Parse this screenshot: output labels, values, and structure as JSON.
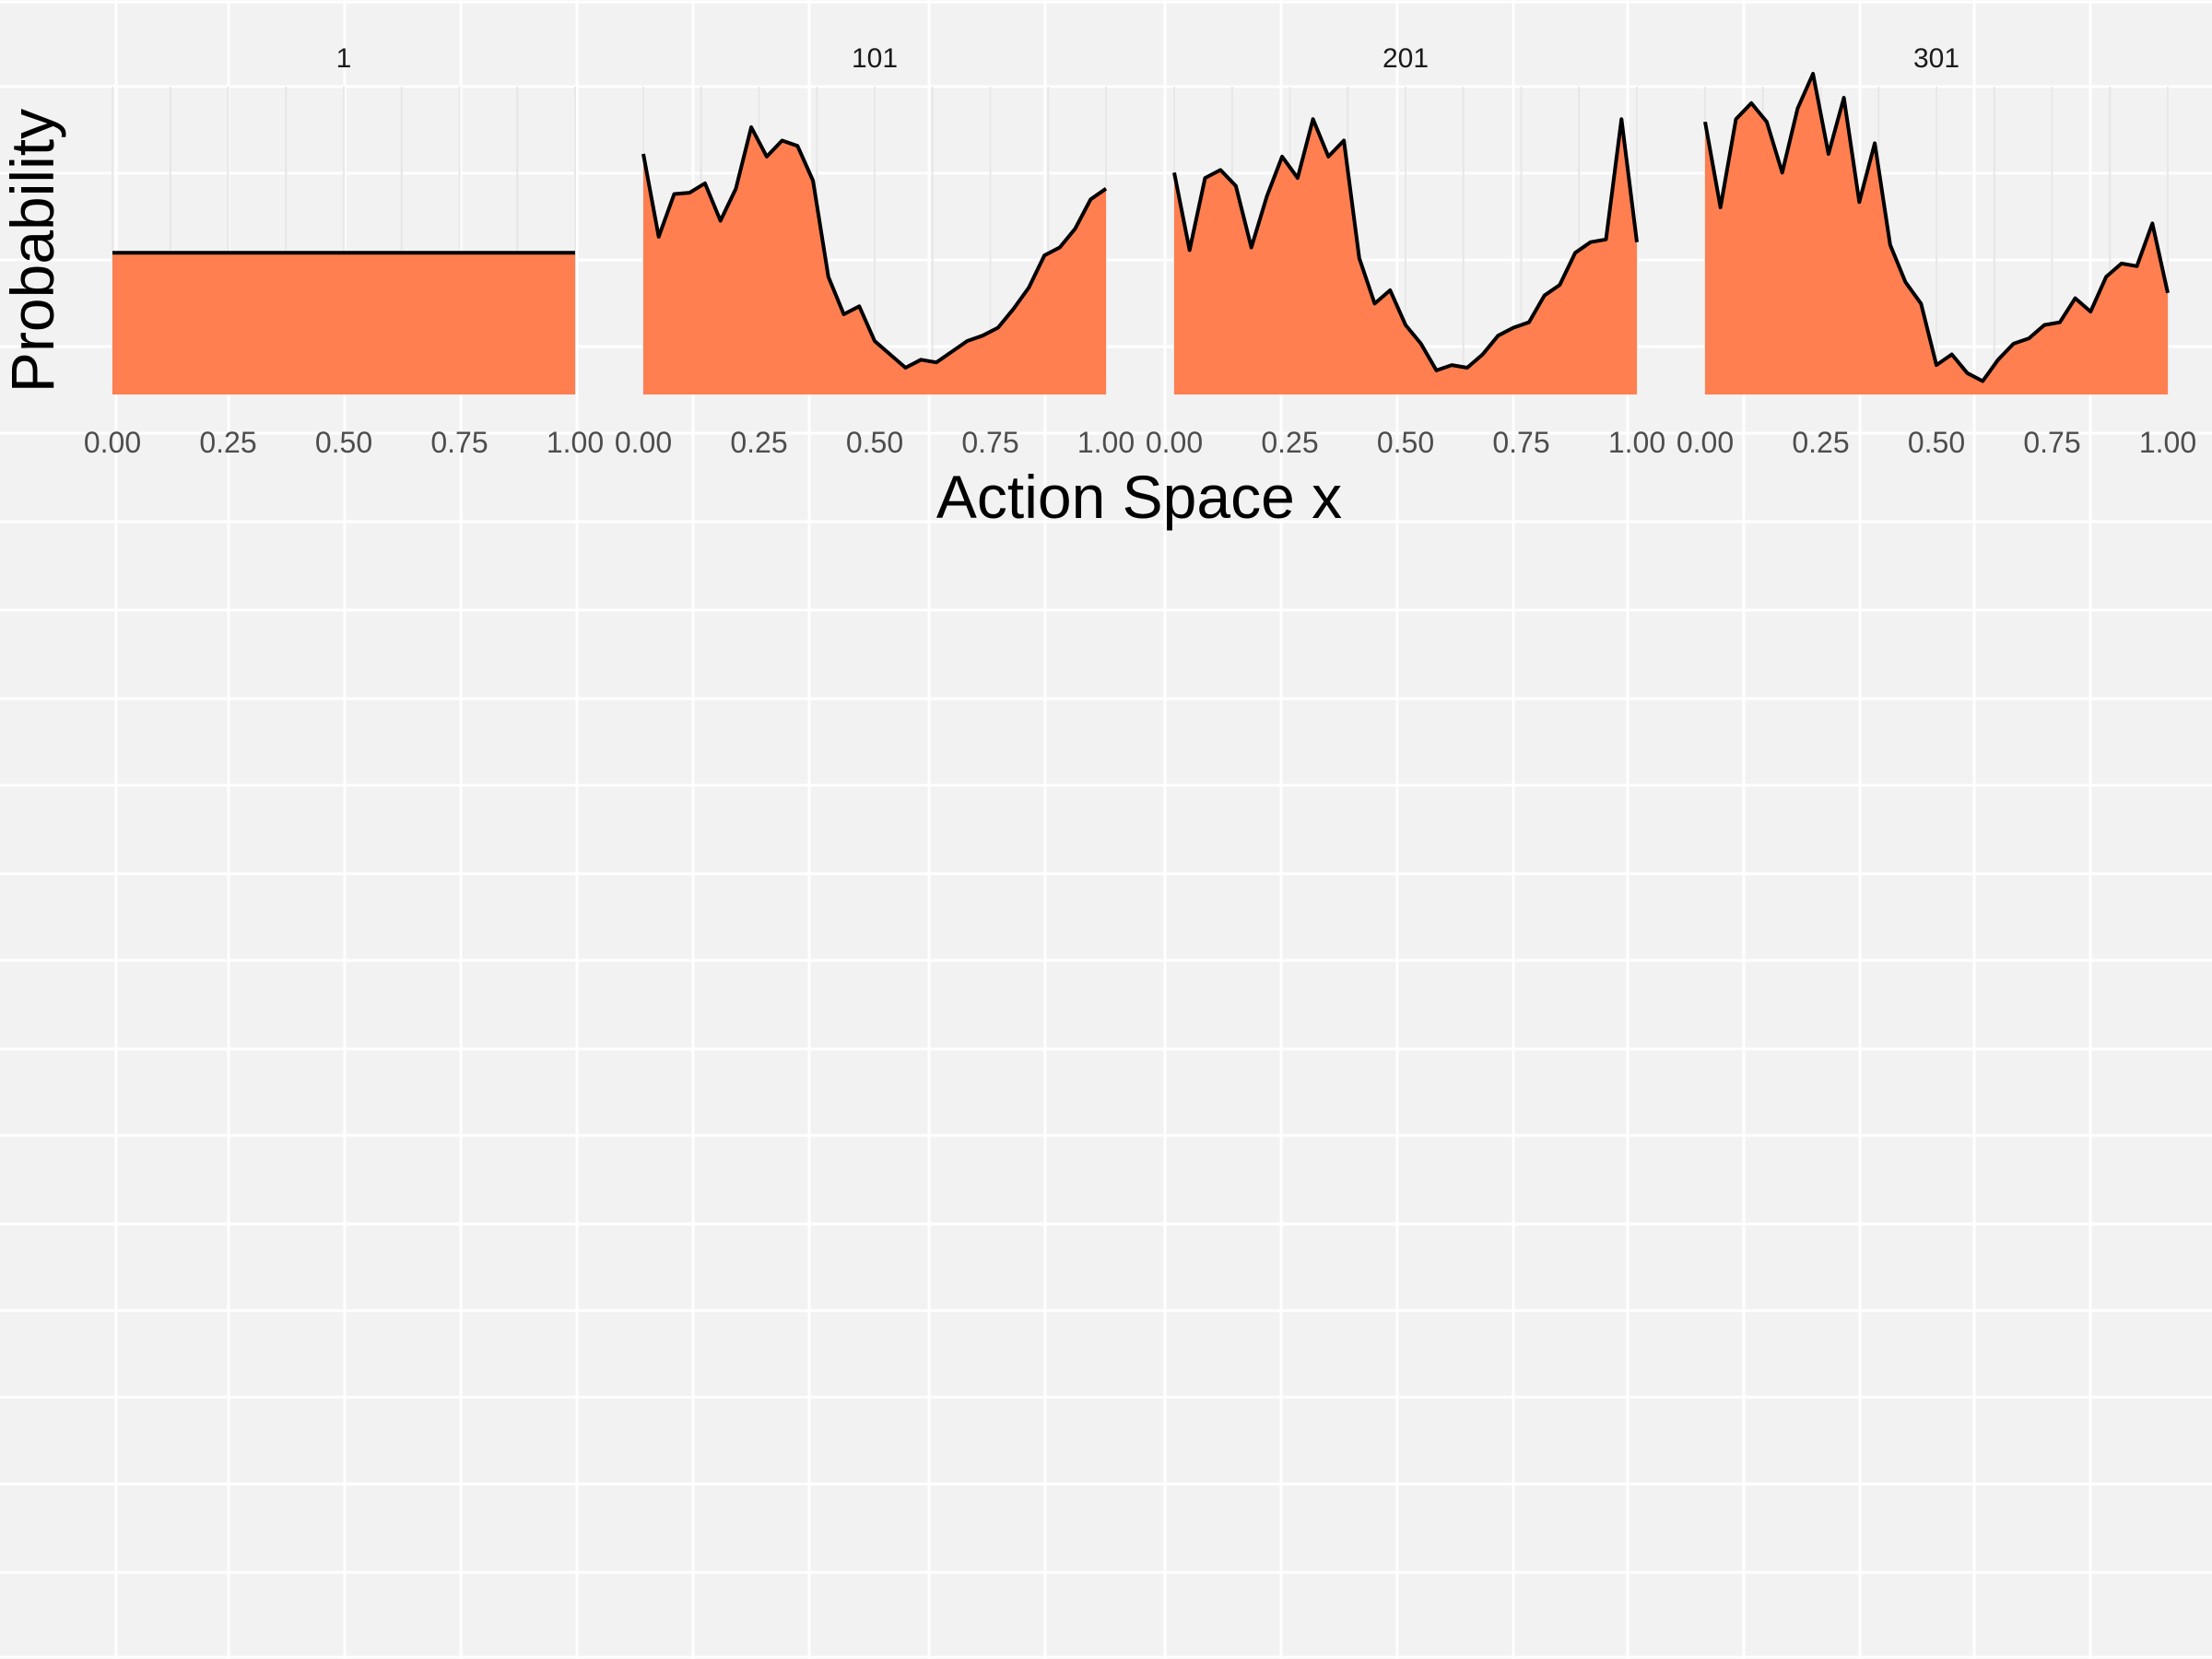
{
  "chart_data": {
    "type": "area",
    "xlabel": "Action Space x",
    "ylabel": "Probability",
    "x_ticks": [
      "0.00",
      "0.25",
      "0.50",
      "0.75",
      "1.00"
    ],
    "x_range": [
      0,
      1
    ],
    "grid": true,
    "colors": {
      "fill": "#ff7f50",
      "line": "#000000",
      "background": "#f2f2f2",
      "grid": "#ffffff"
    },
    "x": [
      0.0,
      0.0333,
      0.0667,
      0.1,
      0.1333,
      0.1667,
      0.2,
      0.2333,
      0.2667,
      0.3,
      0.3333,
      0.3667,
      0.4,
      0.4333,
      0.4667,
      0.5,
      0.5333,
      0.5667,
      0.6,
      0.6333,
      0.6667,
      0.7,
      0.7333,
      0.7667,
      0.8,
      0.8333,
      0.8667,
      0.9,
      0.9333,
      0.9667,
      1.0
    ],
    "panels": [
      {
        "label": "1",
        "values": [
          0.53,
          0.53,
          0.53,
          0.53,
          0.53,
          0.53,
          0.53,
          0.53,
          0.53,
          0.53,
          0.53,
          0.53,
          0.53,
          0.53,
          0.53,
          0.53,
          0.53,
          0.53,
          0.53,
          0.53,
          0.53,
          0.53,
          0.53,
          0.53,
          0.53,
          0.53,
          0.53,
          0.53,
          0.53,
          0.53,
          0.53
        ]
      },
      {
        "label": "101",
        "values": [
          0.9,
          0.59,
          0.75,
          0.755,
          0.79,
          0.65,
          0.77,
          1.0,
          0.89,
          0.95,
          0.93,
          0.8,
          0.44,
          0.3,
          0.33,
          0.2,
          0.15,
          0.1,
          0.13,
          0.12,
          0.16,
          0.2,
          0.22,
          0.25,
          0.32,
          0.4,
          0.52,
          0.55,
          0.62,
          0.73,
          0.77
        ]
      },
      {
        "label": "201",
        "values": [
          0.83,
          0.54,
          0.81,
          0.84,
          0.78,
          0.55,
          0.74,
          0.89,
          0.81,
          1.03,
          0.89,
          0.95,
          0.51,
          0.34,
          0.39,
          0.26,
          0.19,
          0.09,
          0.11,
          0.1,
          0.15,
          0.22,
          0.25,
          0.27,
          0.37,
          0.41,
          0.53,
          0.57,
          0.58,
          1.03,
          0.57
        ]
      },
      {
        "label": "301",
        "values": [
          1.02,
          0.7,
          1.03,
          1.09,
          1.02,
          0.83,
          1.07,
          1.2,
          0.9,
          1.11,
          0.72,
          0.94,
          0.56,
          0.42,
          0.34,
          0.11,
          0.15,
          0.08,
          0.05,
          0.13,
          0.19,
          0.21,
          0.26,
          0.27,
          0.36,
          0.31,
          0.44,
          0.49,
          0.48,
          0.64,
          0.38
        ]
      }
    ]
  }
}
